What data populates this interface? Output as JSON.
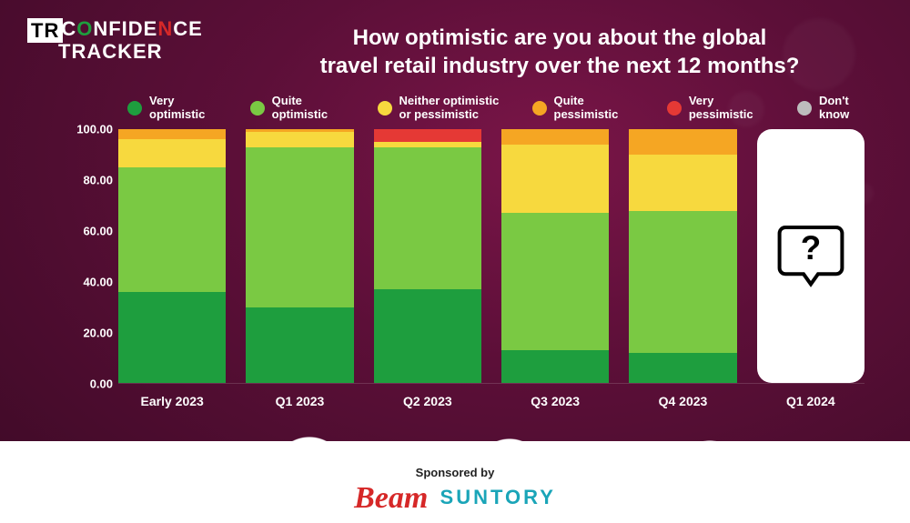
{
  "logo": {
    "box": "TR",
    "line1_a": "C",
    "line1_b": "NFIDE",
    "line1_c": "CE",
    "line2_a": "",
    "line2_b": "TRACKER",
    "arrow_up": "O",
    "arrow_dn": "N"
  },
  "title": "How optimistic are you about the global\ntravel retail industry over the next 12 months?",
  "legend": [
    {
      "label": "Very optimistic",
      "color": "#1e9e3e"
    },
    {
      "label": "Quite optimistic",
      "color": "#7ac943"
    },
    {
      "label": "Neither optimistic or pessimistic",
      "color": "#f7d93e"
    },
    {
      "label": "Quite pessimistic",
      "color": "#f5a623"
    },
    {
      "label": "Very pessimistic",
      "color": "#e53935"
    },
    {
      "label": "Don't know",
      "color": "#bdbdbd"
    }
  ],
  "chart": {
    "type": "stacked-bar",
    "ylim": [
      0,
      100
    ],
    "ytick_step": 20,
    "y_format": "fixed2",
    "background": "transparent",
    "categories": [
      "Early 2023",
      "Q1 2023",
      "Q2 2023",
      "Q3 2023",
      "Q4 2023",
      "Q1 2024"
    ],
    "future_index": 5,
    "series_colors": [
      "#1e9e3e",
      "#7ac943",
      "#f7d93e",
      "#f5a623",
      "#e53935",
      "#bdbdbd"
    ],
    "stacks": [
      {
        "very_opt": 36,
        "quite_opt": 49,
        "neither": 11,
        "quite_pes": 4,
        "very_pes": 0,
        "dk": 0
      },
      {
        "very_opt": 30,
        "quite_opt": 63,
        "neither": 6,
        "quite_pes": 1,
        "very_pes": 0,
        "dk": 0
      },
      {
        "very_opt": 37,
        "quite_opt": 56,
        "neither": 2,
        "quite_pes": 0,
        "very_pes": 5,
        "dk": 0
      },
      {
        "very_opt": 13,
        "quite_opt": 54,
        "neither": 27,
        "quite_pes": 6,
        "very_pes": 0,
        "dk": 0
      },
      {
        "very_opt": 12,
        "quite_opt": 56,
        "neither": 22,
        "quite_pes": 10,
        "very_pes": 0,
        "dk": 0
      },
      null
    ],
    "stack_order": [
      "very_opt",
      "quite_opt",
      "neither",
      "quite_pes",
      "very_pes",
      "dk"
    ]
  },
  "sponsor": {
    "label": "Sponsored by",
    "brand1": "Beam",
    "brand2": "SUNTORY"
  }
}
